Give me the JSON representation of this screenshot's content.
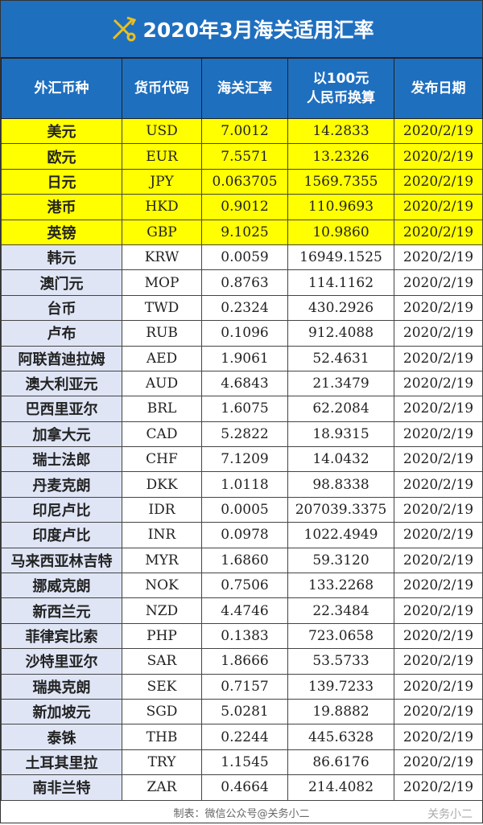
{
  "title": "2020年3月海关适用汇率",
  "headers": [
    "外汇币种",
    "货币代码",
    "海关汇率",
    "以100元\n人民币换算",
    "发布日期"
  ],
  "header_cny_line1": "以100元",
  "header_cny_line2": "人民币换算",
  "highlight_color": "#ffff00",
  "header_color": "#1f6fbf",
  "rows": [
    {
      "name": "美元",
      "code": "USD",
      "rate": "7.0012",
      "per100": "14.2833",
      "date": "2020/2/19",
      "highlight": true
    },
    {
      "name": "欧元",
      "code": "EUR",
      "rate": "7.5571",
      "per100": "13.2326",
      "date": "2020/2/19",
      "highlight": true
    },
    {
      "name": "日元",
      "code": "JPY",
      "rate": "0.063705",
      "per100": "1569.7355",
      "date": "2020/2/19",
      "highlight": true
    },
    {
      "name": "港币",
      "code": "HKD",
      "rate": "0.9012",
      "per100": "110.9693",
      "date": "2020/2/19",
      "highlight": true
    },
    {
      "name": "英镑",
      "code": "GBP",
      "rate": "9.1025",
      "per100": "10.9860",
      "date": "2020/2/19",
      "highlight": true
    },
    {
      "name": "韩元",
      "code": "KRW",
      "rate": "0.0059",
      "per100": "16949.1525",
      "date": "2020/2/19"
    },
    {
      "name": "澳门元",
      "code": "MOP",
      "rate": "0.8763",
      "per100": "114.1162",
      "date": "2020/2/19"
    },
    {
      "name": "台币",
      "code": "TWD",
      "rate": "0.2324",
      "per100": "430.2926",
      "date": "2020/2/19"
    },
    {
      "name": "卢布",
      "code": "RUB",
      "rate": "0.1096",
      "per100": "912.4088",
      "date": "2020/2/19"
    },
    {
      "name": "阿联酋迪拉姆",
      "code": "AED",
      "rate": "1.9061",
      "per100": "52.4631",
      "date": "2020/2/19"
    },
    {
      "name": "澳大利亚元",
      "code": "AUD",
      "rate": "4.6843",
      "per100": "21.3479",
      "date": "2020/2/19"
    },
    {
      "name": "巴西里亚尔",
      "code": "BRL",
      "rate": "1.6075",
      "per100": "62.2084",
      "date": "2020/2/19"
    },
    {
      "name": "加拿大元",
      "code": "CAD",
      "rate": "5.2822",
      "per100": "18.9315",
      "date": "2020/2/19"
    },
    {
      "name": "瑞士法郎",
      "code": "CHF",
      "rate": "7.1209",
      "per100": "14.0432",
      "date": "2020/2/19"
    },
    {
      "name": "丹麦克朗",
      "code": "DKK",
      "rate": "1.0118",
      "per100": "98.8338",
      "date": "2020/2/19"
    },
    {
      "name": "印尼卢比",
      "code": "IDR",
      "rate": "0.0005",
      "per100": "207039.3375",
      "date": "2020/2/19"
    },
    {
      "name": "印度卢比",
      "code": "INR",
      "rate": "0.0978",
      "per100": "1022.4949",
      "date": "2020/2/19"
    },
    {
      "name": "马来西亚林吉特",
      "code": "MYR",
      "rate": "1.6860",
      "per100": "59.3120",
      "date": "2020/2/19"
    },
    {
      "name": "挪威克朗",
      "code": "NOK",
      "rate": "0.7506",
      "per100": "133.2268",
      "date": "2020/2/19"
    },
    {
      "name": "新西兰元",
      "code": "NZD",
      "rate": "4.4746",
      "per100": "22.3484",
      "date": "2020/2/19"
    },
    {
      "name": "菲律宾比索",
      "code": "PHP",
      "rate": "0.1383",
      "per100": "723.0658",
      "date": "2020/2/19"
    },
    {
      "name": "沙特里亚尔",
      "code": "SAR",
      "rate": "1.8666",
      "per100": "53.5733",
      "date": "2020/2/19"
    },
    {
      "name": "瑞典克朗",
      "code": "SEK",
      "rate": "0.7157",
      "per100": "139.7233",
      "date": "2020/2/19"
    },
    {
      "name": "新加坡元",
      "code": "SGD",
      "rate": "5.0281",
      "per100": "19.8882",
      "date": "2020/2/19"
    },
    {
      "name": "泰铢",
      "code": "THB",
      "rate": "0.2244",
      "per100": "445.6328",
      "date": "2020/2/19"
    },
    {
      "name": "土耳其里拉",
      "code": "TRY",
      "rate": "1.1545",
      "per100": "86.6176",
      "date": "2020/2/19"
    },
    {
      "name": "南非兰特",
      "code": "ZAR",
      "rate": "0.4664",
      "per100": "214.4082",
      "date": "2020/2/19"
    }
  ],
  "footer": "制表：微信公众号@关务小二",
  "watermark": "关务小二"
}
